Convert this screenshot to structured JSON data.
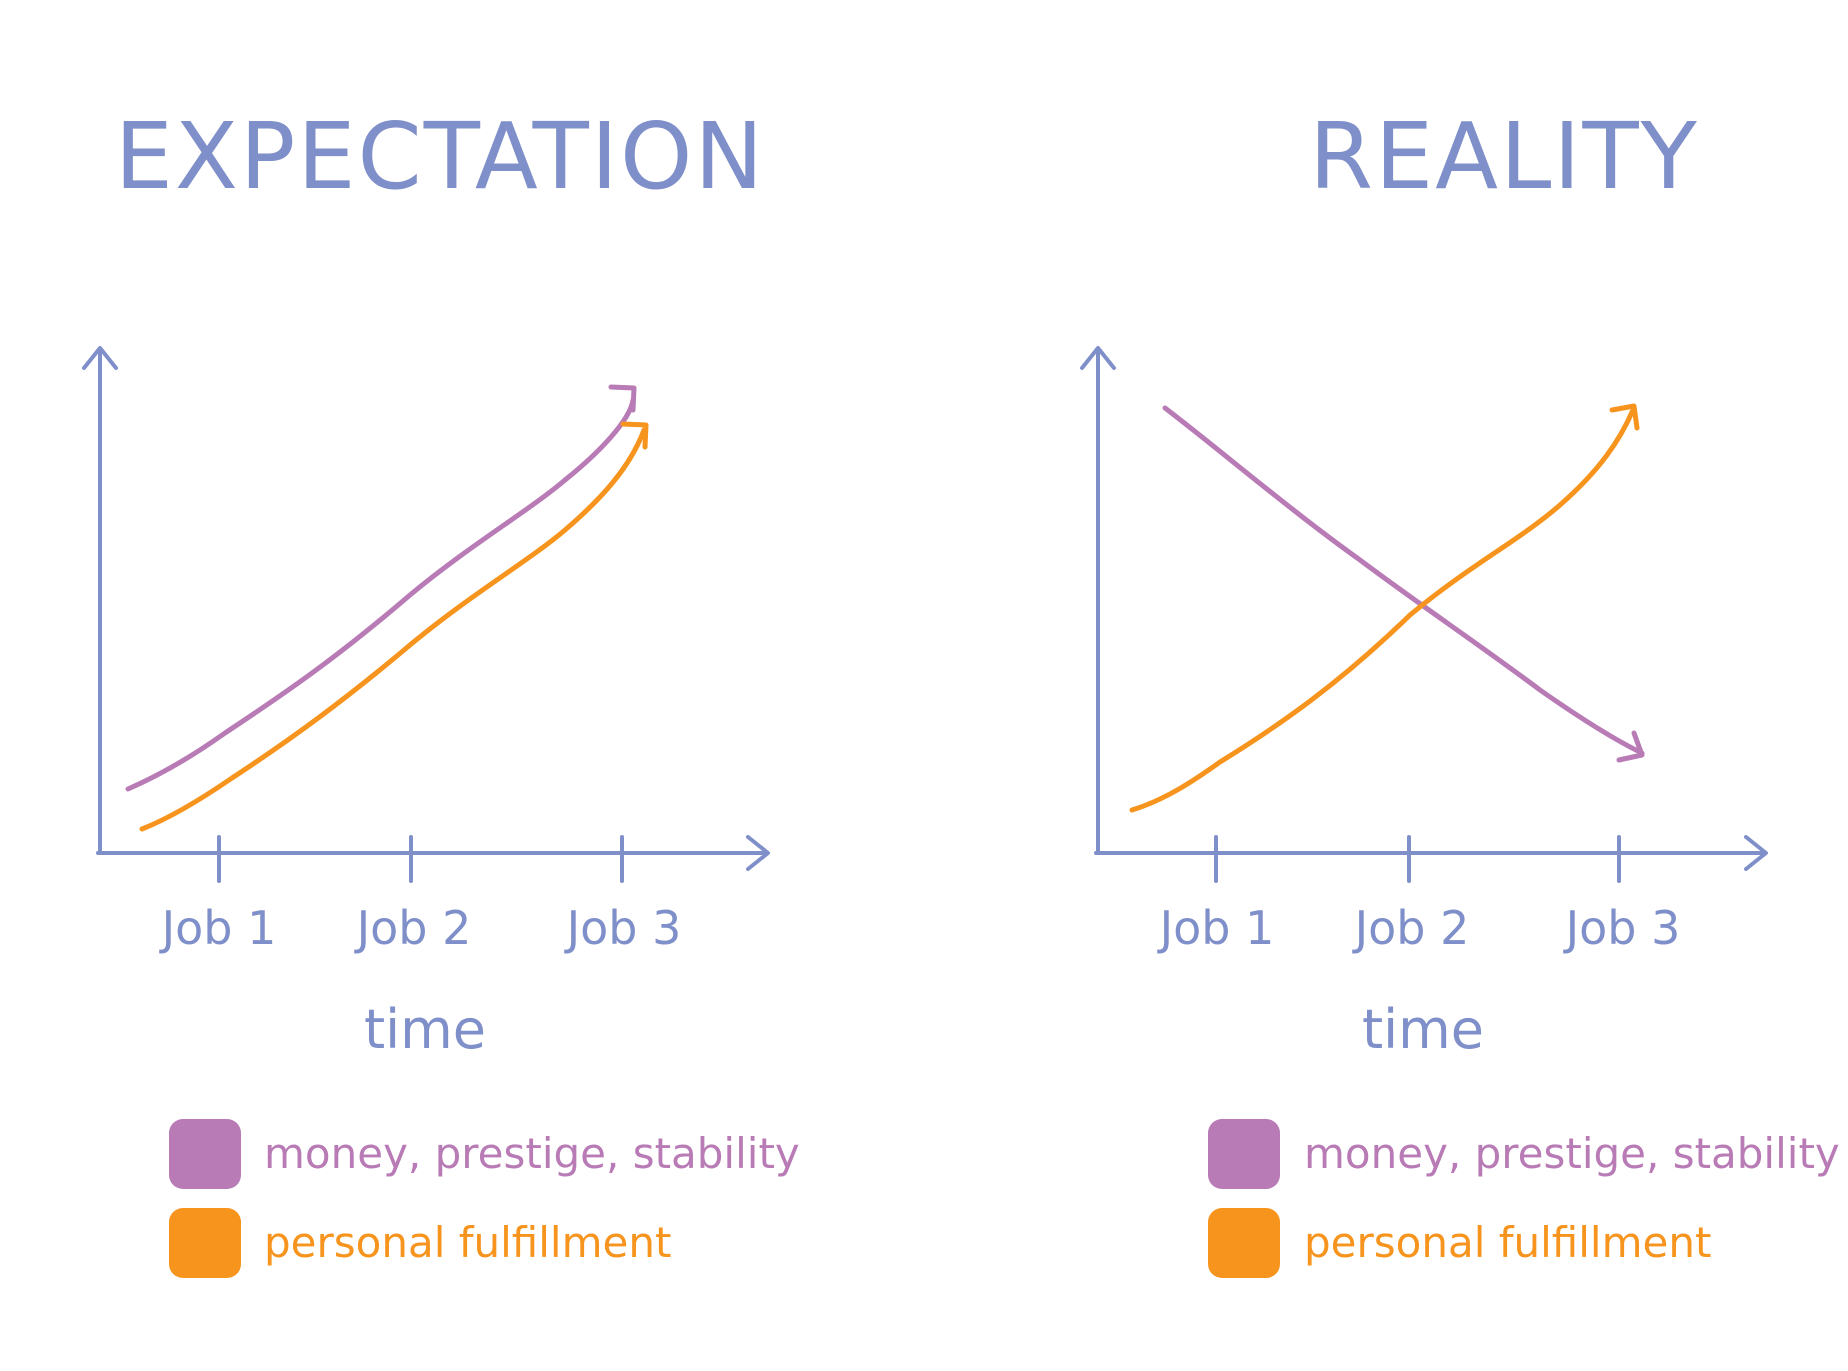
{
  "colors": {
    "axis": "#7f8fc9",
    "money": "#b87bb6",
    "fulfillment": "#f7941d"
  },
  "chart_data": [
    {
      "type": "line",
      "title": "EXPECTATION",
      "xlabel": "time",
      "ylabel": "",
      "categories": [
        "Job 1",
        "Job 2",
        "Job 3"
      ],
      "series": [
        {
          "name": "money, prestige, stability",
          "color": "#b87bb6",
          "values": [
            0.13,
            0.56,
            0.97
          ]
        },
        {
          "name": "personal fulfillment",
          "color": "#f7941d",
          "values": [
            0.05,
            0.45,
            0.89
          ]
        }
      ],
      "legend": [
        {
          "label": "money, prestige, stability",
          "color": "#b87bb6"
        },
        {
          "label": "personal fulfillment",
          "color": "#f7941d"
        }
      ],
      "legend_position": "bottom",
      "grid": false
    },
    {
      "type": "line",
      "title": "REALITY",
      "xlabel": "time",
      "ylabel": "",
      "categories": [
        "Job 1",
        "Job 2",
        "Job 3"
      ],
      "series": [
        {
          "name": "money, prestige, stability",
          "color": "#b87bb6",
          "values": [
            0.85,
            0.48,
            0.2
          ]
        },
        {
          "name": "personal fulfillment",
          "color": "#f7941d",
          "values": [
            0.18,
            0.48,
            0.94
          ]
        }
      ],
      "legend": [
        {
          "label": "money, prestige, stability",
          "color": "#b87bb6"
        },
        {
          "label": "personal fulfillment",
          "color": "#f7941d"
        }
      ],
      "legend_position": "bottom",
      "grid": false
    }
  ]
}
